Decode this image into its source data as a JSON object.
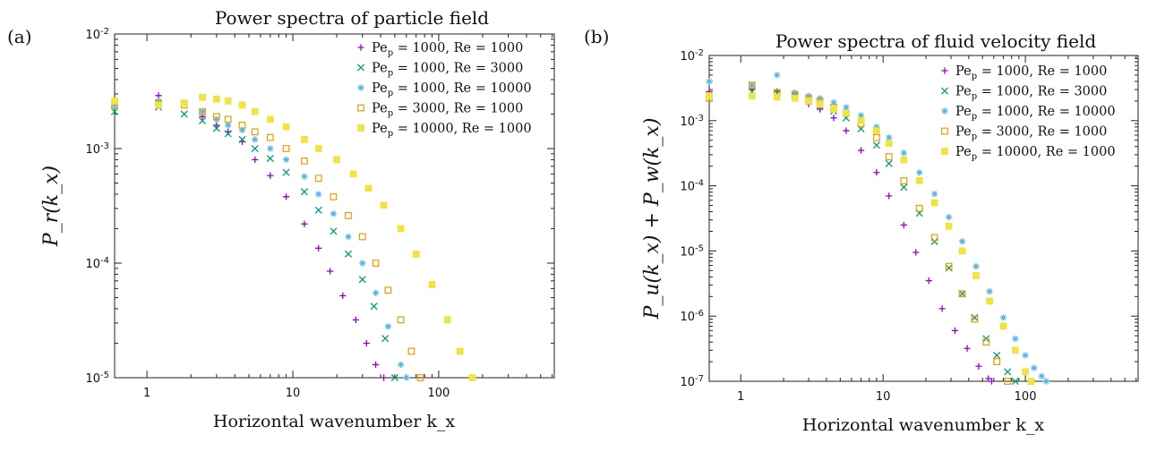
{
  "chart_data": [
    {
      "type": "scatter",
      "panel_label": "(a)",
      "title": "Power spectra of particle field",
      "xlabel": "Horizontal wavenumber k_x",
      "ylabel": "P_r(k_x)",
      "xscale": "log",
      "yscale": "log",
      "xlim": [
        0.6,
        620
      ],
      "ylim": [
        1e-05,
        0.01
      ],
      "xticks": [
        {
          "v": 1,
          "label": "1"
        },
        {
          "v": 10,
          "label": "10"
        },
        {
          "v": 100,
          "label": "100"
        }
      ],
      "yticks": [
        {
          "v": 0.01,
          "label": "10-2"
        },
        {
          "v": 0.001,
          "label": "10-3"
        },
        {
          "v": 0.0001,
          "label": "10-4"
        },
        {
          "v": 1e-05,
          "label": "10-5"
        }
      ],
      "legend_position": "top-right",
      "series": [
        {
          "name": "Pe_p = 1000, Re = 1000",
          "marker": "plus",
          "color": "#9400d3",
          "x": [
            0.6,
            1.2,
            1.8,
            2.4,
            3.0,
            3.6,
            4.5,
            5.5,
            7,
            9,
            12,
            15,
            18,
            22,
            27,
            32,
            37,
            42
          ],
          "y": [
            0.0026,
            0.0029,
            0.0025,
            0.0019,
            0.0016,
            0.0014,
            0.00115,
            0.0008,
            0.00058,
            0.00038,
            0.00022,
            0.000135,
            8.5e-05,
            5.2e-05,
            3.2e-05,
            2e-05,
            1.3e-05,
            1e-05
          ]
        },
        {
          "name": "Pe_p = 1000, Re = 3000",
          "marker": "cross",
          "color": "#009e73",
          "x": [
            0.6,
            1.2,
            1.8,
            2.4,
            3.0,
            3.6,
            4.5,
            5.5,
            7,
            9,
            12,
            15,
            19,
            24,
            30,
            36,
            43,
            50
          ],
          "y": [
            0.0021,
            0.0023,
            0.002,
            0.00175,
            0.0015,
            0.00135,
            0.0012,
            0.001,
            0.00082,
            0.00062,
            0.00042,
            0.00029,
            0.00019,
            0.00012,
            7.2e-05,
            4.2e-05,
            2.2e-05,
            1e-05
          ]
        },
        {
          "name": "Pe_p = 1000, Re = 10000",
          "marker": "star",
          "color": "#56b4e9",
          "x": [
            0.6,
            1.2,
            1.8,
            2.4,
            3.0,
            3.6,
            4.5,
            5.5,
            7,
            9,
            12,
            15,
            19,
            24,
            30,
            37,
            45,
            55,
            60
          ],
          "y": [
            0.0024,
            0.0026,
            0.0025,
            0.0021,
            0.0018,
            0.0016,
            0.00145,
            0.0012,
            0.001,
            0.0008,
            0.00057,
            0.0004,
            0.00027,
            0.00017,
            0.0001,
            5.5e-05,
            2.8e-05,
            1.3e-05,
            1e-05
          ]
        },
        {
          "name": "Pe_p = 3000, Re = 1000",
          "marker": "square",
          "color": "#e69f00",
          "x": [
            0.6,
            1.2,
            1.8,
            2.4,
            3.0,
            3.6,
            4.5,
            5.5,
            7,
            9,
            12,
            15,
            19,
            24,
            30,
            37,
            45,
            55,
            65,
            75
          ],
          "y": [
            0.0024,
            0.0025,
            0.0024,
            0.0021,
            0.0019,
            0.0018,
            0.0016,
            0.0014,
            0.00125,
            0.001,
            0.00078,
            0.00055,
            0.00038,
            0.00026,
            0.00017,
            0.0001,
            5.8e-05,
            3.2e-05,
            1.7e-05,
            1e-05
          ]
        },
        {
          "name": "Pe_p = 10000, Re = 1000",
          "marker": "filled-square",
          "color": "#f0e442",
          "x": [
            0.6,
            1.2,
            1.8,
            2.4,
            3.0,
            3.6,
            4.5,
            5.5,
            7,
            9,
            12,
            15,
            20,
            26,
            33,
            42,
            55,
            70,
            90,
            115,
            140,
            170
          ],
          "y": [
            0.0026,
            0.0024,
            0.0025,
            0.0028,
            0.0027,
            0.0026,
            0.0024,
            0.0021,
            0.0018,
            0.00155,
            0.0012,
            0.001,
            0.0008,
            0.0006,
            0.00045,
            0.00032,
            0.0002,
            0.00012,
            6.5e-05,
            3.2e-05,
            1.7e-05,
            1e-05
          ]
        }
      ]
    },
    {
      "type": "scatter",
      "panel_label": "(b)",
      "title": "Power spectra of fluid velocity field",
      "xlabel": "Horizontal wavenumber k_x",
      "ylabel": "P_u(k_x) + P_w(k_x)",
      "xscale": "log",
      "yscale": "log",
      "xlim": [
        0.6,
        620
      ],
      "ylim": [
        1e-07,
        0.01
      ],
      "xticks": [
        {
          "v": 1,
          "label": "1"
        },
        {
          "v": 10,
          "label": "10"
        },
        {
          "v": 100,
          "label": "100"
        }
      ],
      "yticks": [
        {
          "v": 0.01,
          "label": "10-2"
        },
        {
          "v": 0.001,
          "label": "10-3"
        },
        {
          "v": 0.0001,
          "label": "10-4"
        },
        {
          "v": 1e-05,
          "label": "10-5"
        },
        {
          "v": 1e-06,
          "label": "10-6"
        },
        {
          "v": 1e-07,
          "label": "10-7"
        }
      ],
      "legend_position": "top-right",
      "series": [
        {
          "name": "Pe_p = 1000, Re = 1000",
          "marker": "plus",
          "color": "#9400d3",
          "x": [
            0.6,
            1.2,
            1.8,
            2.4,
            3.0,
            3.6,
            4.5,
            5.5,
            7,
            9,
            11,
            14,
            17,
            21,
            26,
            32,
            39,
            47,
            55,
            58
          ],
          "y": [
            0.0028,
            0.003,
            0.0028,
            0.0024,
            0.0018,
            0.0015,
            0.0011,
            0.0007,
            0.00035,
            0.00016,
            7e-05,
            2.5e-05,
            9.5e-06,
            3.5e-06,
            1.3e-06,
            6e-07,
            3.2e-07,
            1.7e-07,
            1.1e-07,
            1e-07
          ]
        },
        {
          "name": "Pe_p = 1000, Re = 3000",
          "marker": "cross",
          "color": "#009e73",
          "x": [
            0.6,
            1.2,
            1.8,
            2.4,
            3.0,
            3.6,
            4.5,
            5.5,
            7,
            9,
            11,
            14,
            18,
            23,
            29,
            36,
            44,
            53,
            63,
            75,
            85
          ],
          "y": [
            0.0025,
            0.0028,
            0.0027,
            0.0024,
            0.002,
            0.0017,
            0.0014,
            0.0011,
            0.00075,
            0.00042,
            0.00022,
            9.5e-05,
            3.8e-05,
            1.4e-05,
            5.5e-06,
            2.2e-06,
            9.5e-07,
            4.5e-07,
            2.5e-07,
            1.4e-07,
            1e-07
          ]
        },
        {
          "name": "Pe_p = 1000, Re = 10000",
          "marker": "star",
          "color": "#56b4e9",
          "x": [
            0.6,
            1.2,
            1.8,
            2.4,
            3.0,
            3.6,
            4.5,
            5.5,
            7,
            9,
            11,
            14,
            18,
            23,
            29,
            36,
            45,
            56,
            70,
            85,
            100,
            115,
            130,
            140
          ],
          "y": [
            0.004,
            0.0035,
            0.005,
            0.0027,
            0.0024,
            0.0022,
            0.0019,
            0.0016,
            0.0012,
            0.0008,
            0.00055,
            0.00032,
            0.00016,
            7.5e-05,
            3.3e-05,
            1.4e-05,
            5.8e-06,
            2.4e-06,
            9.5e-07,
            4.5e-07,
            2.5e-07,
            1.6e-07,
            1.2e-07,
            1e-07
          ]
        },
        {
          "name": "Pe_p = 3000, Re = 1000",
          "marker": "square",
          "color": "#e69f00",
          "x": [
            0.6,
            1.2,
            1.8,
            2.4,
            3.0,
            3.6,
            4.5,
            5.5,
            7,
            9,
            11,
            14,
            18,
            23,
            29,
            36,
            44,
            53,
            63,
            75
          ],
          "y": [
            0.0022,
            0.0035,
            0.0027,
            0.0025,
            0.0022,
            0.002,
            0.0016,
            0.0013,
            0.0009,
            0.00055,
            0.00028,
            0.00012,
            4.5e-05,
            1.6e-05,
            5.8e-06,
            2.2e-06,
            9e-07,
            4e-07,
            2e-07,
            1e-07
          ]
        },
        {
          "name": "Pe_p = 10000, Re = 1000",
          "marker": "filled-square",
          "color": "#f0e442",
          "x": [
            0.6,
            1.2,
            1.8,
            2.4,
            3.0,
            3.6,
            4.5,
            5.5,
            7,
            9,
            11,
            14,
            18,
            23,
            29,
            36,
            45,
            56,
            70,
            85,
            100,
            110
          ],
          "y": [
            0.0024,
            0.0024,
            0.0023,
            0.0022,
            0.002,
            0.0018,
            0.0015,
            0.0013,
            0.001,
            0.0007,
            0.00045,
            0.00025,
            0.00012,
            5.5e-05,
            2.4e-05,
            1e-05,
            4.2e-06,
            1.7e-06,
            7e-07,
            3e-07,
            1.4e-07,
            1e-07
          ]
        }
      ]
    }
  ]
}
